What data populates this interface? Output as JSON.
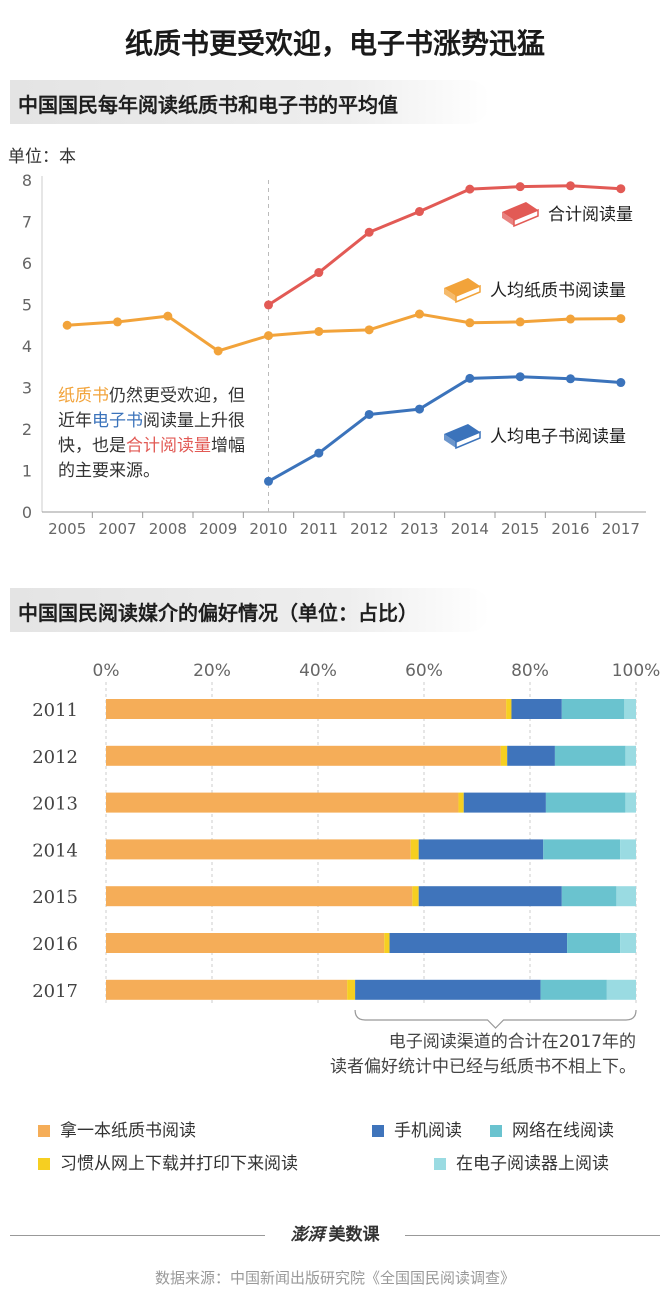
{
  "title": "纸质书更受欢迎，电子书涨势迅猛",
  "section1": {
    "title": "中国国民每年阅读纸质书和电子书的平均值",
    "unit": "单位：本"
  },
  "section2": {
    "title": "中国国民阅读媒介的偏好情况（单位：占比）"
  },
  "annotation": {
    "p1": "纸质书",
    "p2": "仍然更受欢迎，但近年",
    "p3": "电子书",
    "p4": "阅读量上升很快，也是",
    "p5": "合计阅读量",
    "p6": "增幅的主要来源。"
  },
  "note": {
    "line1": "电子阅读渠道的合计在2017年的",
    "line2": "读者偏好统计中已经与纸质书不相上下。"
  },
  "legend": [
    {
      "label": "拿一本纸质书阅读",
      "color": "#f5ad58"
    },
    {
      "label": "手机阅读",
      "color": "#3f74bb"
    },
    {
      "label": "网络在线阅读",
      "color": "#6ac3cf"
    },
    {
      "label": "习惯从网上下载并打印下来阅读",
      "color": "#f6cf21"
    },
    {
      "label": "在电子阅读器上阅读",
      "color": "#9adbe2"
    }
  ],
  "footer": {
    "logo_brand": "澎湃",
    "logo_text": "美数课",
    "source": "数据来源：中国新闻出版研究院《全国国民阅读调查》"
  },
  "chart_data": [
    {
      "type": "line",
      "x": [
        2005,
        2007,
        2008,
        2009,
        2010,
        2011,
        2012,
        2013,
        2014,
        2015,
        2016,
        2017
      ],
      "ylim": [
        0,
        8
      ],
      "yticks": [
        0,
        1,
        2,
        3,
        4,
        5,
        6,
        7,
        8
      ],
      "series": [
        {
          "name": "合计阅读量",
          "color": "#e25a55",
          "values": [
            null,
            null,
            null,
            null,
            4.99,
            5.77,
            6.74,
            7.24,
            7.78,
            7.84,
            7.86,
            7.79
          ]
        },
        {
          "name": "人均纸质书阅读量",
          "color": "#f2a33a",
          "values": [
            4.5,
            4.58,
            4.72,
            3.88,
            4.25,
            4.35,
            4.39,
            4.77,
            4.56,
            4.58,
            4.65,
            4.66
          ]
        },
        {
          "name": "人均电子书阅读量",
          "color": "#3b73bb",
          "values": [
            null,
            null,
            null,
            null,
            0.74,
            1.42,
            2.35,
            2.48,
            3.22,
            3.26,
            3.21,
            3.12
          ]
        }
      ]
    },
    {
      "type": "bar",
      "stacked": true,
      "orientation": "horizontal",
      "categories": [
        "2011",
        "2012",
        "2013",
        "2014",
        "2015",
        "2016",
        "2017"
      ],
      "xticks": [
        "0%",
        "20%",
        "40%",
        "60%",
        "80%",
        "100%"
      ],
      "xlim": [
        0,
        100
      ],
      "series": [
        {
          "name": "拿一本纸质书阅读",
          "color": "#f5ad58",
          "values": [
            75.5,
            74.5,
            66.5,
            57.5,
            57.8,
            52.5,
            45.5
          ]
        },
        {
          "name": "习惯从网上下载并打印下来阅读",
          "color": "#f6cf21",
          "values": [
            1.0,
            1.2,
            1.0,
            1.5,
            1.2,
            1.0,
            1.5
          ]
        },
        {
          "name": "手机阅读",
          "color": "#3f74bb",
          "values": [
            9.5,
            9.0,
            15.5,
            23.5,
            27.0,
            33.5,
            35.0
          ]
        },
        {
          "name": "网络在线阅读",
          "color": "#6ac3cf",
          "values": [
            11.8,
            13.3,
            15.0,
            14.5,
            10.3,
            10.0,
            12.5
          ]
        },
        {
          "name": "在电子阅读器上阅读",
          "color": "#9adbe2",
          "values": [
            2.2,
            2.0,
            2.0,
            3.0,
            3.7,
            3.0,
            5.5
          ]
        }
      ]
    }
  ]
}
